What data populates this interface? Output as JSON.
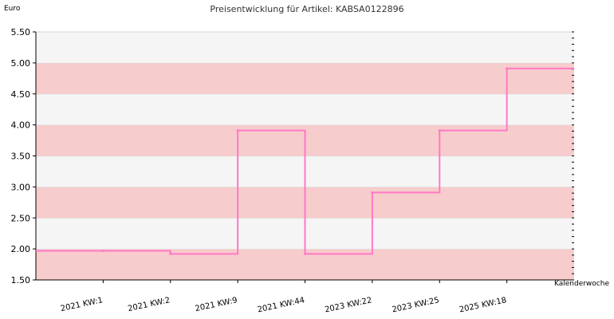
{
  "chart_data": {
    "type": "line",
    "title": "Preisentwicklung für Artikel: KABSA0122896",
    "ylabel": "Euro",
    "xlabel": "Kalenderwoche",
    "ylim": [
      1.5,
      5.5
    ],
    "y_ticks": [
      "1.50",
      "2.00",
      "2.50",
      "3.00",
      "3.50",
      "4.00",
      "4.50",
      "5.00",
      "5.50"
    ],
    "categories": [
      "2021 KW:1",
      "2021 KW:2",
      "2021 KW:9",
      "2021 KW:44",
      "2023 KW:22",
      "2023 KW:25",
      "2025 KW:18"
    ],
    "series": [
      {
        "values": [
          1.97,
          1.92,
          3.91,
          1.92,
          2.91,
          3.91,
          4.91
        ]
      }
    ],
    "step": true,
    "grid": true,
    "colors": {
      "line": "#ff79c6",
      "band_pink": "#f7cccc",
      "band_light": "#f5f5f5"
    }
  }
}
